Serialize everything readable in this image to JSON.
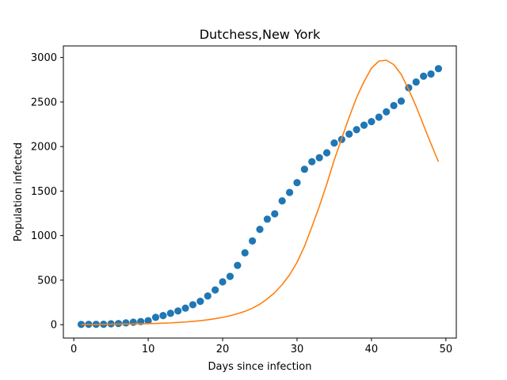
{
  "chart_data": {
    "type": "scatter",
    "title": "Dutchess,New York",
    "xlabel": "Days since infection",
    "ylabel": "Population infected",
    "xlim": [
      -1.4,
      51.4
    ],
    "ylim": [
      -150,
      3130
    ],
    "xticks": [
      0,
      10,
      20,
      30,
      40,
      50
    ],
    "yticks": [
      0,
      500,
      1000,
      1500,
      2000,
      2500,
      3000
    ],
    "grid": false,
    "series": [
      {
        "style": "scatter",
        "color": "#1f77b4",
        "x": [
          1,
          2,
          3,
          4,
          5,
          6,
          7,
          8,
          9,
          10,
          11,
          12,
          13,
          14,
          15,
          16,
          17,
          18,
          19,
          20,
          21,
          22,
          23,
          24,
          25,
          26,
          27,
          28,
          29,
          30,
          31,
          32,
          33,
          34,
          35,
          36,
          37,
          38,
          39,
          40,
          41,
          42,
          43,
          44,
          45,
          46,
          47,
          48,
          49
        ],
        "y": [
          3,
          4,
          4,
          5,
          10,
          13,
          20,
          28,
          35,
          45,
          82,
          102,
          128,
          154,
          186,
          224,
          262,
          322,
          390,
          481,
          542,
          666,
          807,
          940,
          1070,
          1185,
          1245,
          1390,
          1485,
          1595,
          1745,
          1830,
          1875,
          1930,
          2040,
          2080,
          2140,
          2190,
          2240,
          2280,
          2330,
          2390,
          2460,
          2510,
          2660,
          2725,
          2790,
          2815,
          2875
        ]
      },
      {
        "style": "line",
        "color": "#ff7f0e",
        "x": [
          1,
          2,
          3,
          4,
          5,
          6,
          7,
          8,
          9,
          10,
          11,
          12,
          13,
          14,
          15,
          16,
          17,
          18,
          19,
          20,
          21,
          22,
          23,
          24,
          25,
          26,
          27,
          28,
          29,
          30,
          31,
          32,
          33,
          34,
          35,
          36,
          37,
          38,
          39,
          40,
          41,
          42,
          43,
          44,
          45,
          46,
          47,
          48,
          49
        ],
        "y": [
          2,
          3,
          3,
          4,
          5,
          6,
          7,
          8,
          10,
          12,
          14,
          17,
          20,
          25,
          30,
          37,
          45,
          55,
          67,
          82,
          100,
          123,
          150,
          185,
          230,
          290,
          360,
          450,
          560,
          700,
          880,
          1100,
          1330,
          1580,
          1850,
          2090,
          2330,
          2550,
          2730,
          2880,
          2960,
          2970,
          2920,
          2810,
          2640,
          2450,
          2240,
          2030,
          1830
        ]
      }
    ]
  }
}
